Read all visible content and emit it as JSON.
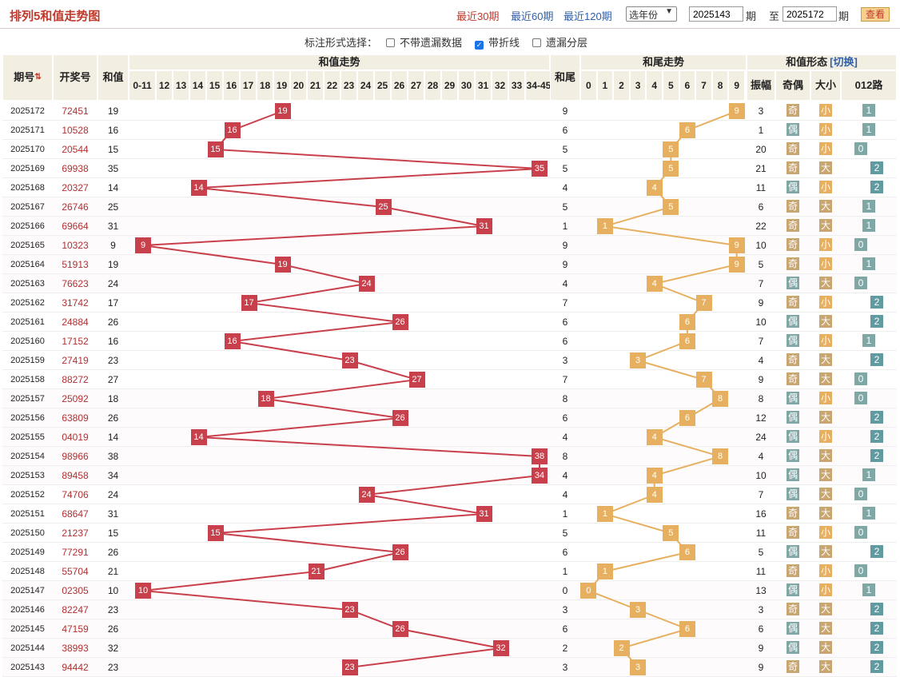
{
  "title": "排列5和值走势图",
  "nav": {
    "recent30": "最近30期",
    "recent60": "最近60期",
    "recent120": "最近120期"
  },
  "year_select": "选年份",
  "range": {
    "from": "2025143",
    "to": "2025172",
    "qi": "期",
    "zhi": "至",
    "query": "查看"
  },
  "options": {
    "label": "标注形式选择：",
    "o1": "不带遗漏数据",
    "o2": "带折线",
    "o3": "遗漏分层",
    "o1_checked": false,
    "o2_checked": true,
    "o3_checked": false
  },
  "headers": {
    "period": "期号",
    "period_sort": "▲▼",
    "draw": "开奖号",
    "sum": "和值",
    "trend": "和值走势",
    "tail": "和尾",
    "tail_trend": "和尾走势",
    "form": "和值形态",
    "switch": "[切换]",
    "amp": "振幅",
    "oddeven": "奇偶",
    "bigsmall": "大小",
    "road": "012路",
    "cols": [
      "0-11",
      "12",
      "13",
      "14",
      "15",
      "16",
      "17",
      "18",
      "19",
      "20",
      "21",
      "22",
      "23",
      "24",
      "25",
      "26",
      "27",
      "28",
      "29",
      "30",
      "31",
      "32",
      "33",
      "34-45"
    ],
    "tailcols": [
      "0",
      "1",
      "2",
      "3",
      "4",
      "5",
      "6",
      "7",
      "8",
      "9"
    ],
    "odd": "奇",
    "even": "偶",
    "big": "大",
    "small": "小"
  },
  "colors": {
    "red": "#c8404c",
    "orange": "#e6b060",
    "header": "#f3eee2"
  },
  "rows": [
    {
      "p": "2025172",
      "d": "72451",
      "s": 19,
      "t": 9,
      "amp": 3,
      "oe": "奇",
      "bs": "小",
      "rd": 1
    },
    {
      "p": "2025171",
      "d": "10528",
      "s": 16,
      "t": 6,
      "amp": 1,
      "oe": "偶",
      "bs": "小",
      "rd": 1
    },
    {
      "p": "2025170",
      "d": "20544",
      "s": 15,
      "t": 5,
      "amp": 20,
      "oe": "奇",
      "bs": "小",
      "rd": 0
    },
    {
      "p": "2025169",
      "d": "69938",
      "s": 35,
      "t": 5,
      "amp": 21,
      "oe": "奇",
      "bs": "大",
      "rd": 2
    },
    {
      "p": "2025168",
      "d": "20327",
      "s": 14,
      "t": 4,
      "amp": 11,
      "oe": "偶",
      "bs": "小",
      "rd": 2
    },
    {
      "p": "2025167",
      "d": "26746",
      "s": 25,
      "t": 5,
      "amp": 6,
      "oe": "奇",
      "bs": "大",
      "rd": 1
    },
    {
      "p": "2025166",
      "d": "69664",
      "s": 31,
      "t": 1,
      "amp": 22,
      "oe": "奇",
      "bs": "大",
      "rd": 1
    },
    {
      "p": "2025165",
      "d": "10323",
      "s": 9,
      "t": 9,
      "amp": 10,
      "oe": "奇",
      "bs": "小",
      "rd": 0
    },
    {
      "p": "2025164",
      "d": "51913",
      "s": 19,
      "t": 9,
      "amp": 5,
      "oe": "奇",
      "bs": "小",
      "rd": 1
    },
    {
      "p": "2025163",
      "d": "76623",
      "s": 24,
      "t": 4,
      "amp": 7,
      "oe": "偶",
      "bs": "大",
      "rd": 0
    },
    {
      "p": "2025162",
      "d": "31742",
      "s": 17,
      "t": 7,
      "amp": 9,
      "oe": "奇",
      "bs": "小",
      "rd": 2
    },
    {
      "p": "2025161",
      "d": "24884",
      "s": 26,
      "t": 6,
      "amp": 10,
      "oe": "偶",
      "bs": "大",
      "rd": 2
    },
    {
      "p": "2025160",
      "d": "17152",
      "s": 16,
      "t": 6,
      "amp": 7,
      "oe": "偶",
      "bs": "小",
      "rd": 1
    },
    {
      "p": "2025159",
      "d": "27419",
      "s": 23,
      "t": 3,
      "amp": 4,
      "oe": "奇",
      "bs": "大",
      "rd": 2
    },
    {
      "p": "2025158",
      "d": "88272",
      "s": 27,
      "t": 7,
      "amp": 9,
      "oe": "奇",
      "bs": "大",
      "rd": 0
    },
    {
      "p": "2025157",
      "d": "25092",
      "s": 18,
      "t": 8,
      "amp": 8,
      "oe": "偶",
      "bs": "小",
      "rd": 0
    },
    {
      "p": "2025156",
      "d": "63809",
      "s": 26,
      "t": 6,
      "amp": 12,
      "oe": "偶",
      "bs": "大",
      "rd": 2
    },
    {
      "p": "2025155",
      "d": "04019",
      "s": 14,
      "t": 4,
      "amp": 24,
      "oe": "偶",
      "bs": "小",
      "rd": 2
    },
    {
      "p": "2025154",
      "d": "98966",
      "s": 38,
      "t": 8,
      "amp": 4,
      "oe": "偶",
      "bs": "大",
      "rd": 2
    },
    {
      "p": "2025153",
      "d": "89458",
      "s": 34,
      "t": 4,
      "amp": 10,
      "oe": "偶",
      "bs": "大",
      "rd": 1
    },
    {
      "p": "2025152",
      "d": "74706",
      "s": 24,
      "t": 4,
      "amp": 7,
      "oe": "偶",
      "bs": "大",
      "rd": 0
    },
    {
      "p": "2025151",
      "d": "68647",
      "s": 31,
      "t": 1,
      "amp": 16,
      "oe": "奇",
      "bs": "大",
      "rd": 1
    },
    {
      "p": "2025150",
      "d": "21237",
      "s": 15,
      "t": 5,
      "amp": 11,
      "oe": "奇",
      "bs": "小",
      "rd": 0
    },
    {
      "p": "2025149",
      "d": "77291",
      "s": 26,
      "t": 6,
      "amp": 5,
      "oe": "偶",
      "bs": "大",
      "rd": 2
    },
    {
      "p": "2025148",
      "d": "55704",
      "s": 21,
      "t": 1,
      "amp": 11,
      "oe": "奇",
      "bs": "小",
      "rd": 0
    },
    {
      "p": "2025147",
      "d": "02305",
      "s": 10,
      "t": 0,
      "amp": 13,
      "oe": "偶",
      "bs": "小",
      "rd": 1
    },
    {
      "p": "2025146",
      "d": "82247",
      "s": 23,
      "t": 3,
      "amp": 3,
      "oe": "奇",
      "bs": "大",
      "rd": 2
    },
    {
      "p": "2025145",
      "d": "47159",
      "s": 26,
      "t": 6,
      "amp": 6,
      "oe": "偶",
      "bs": "大",
      "rd": 2
    },
    {
      "p": "2025144",
      "d": "38993",
      "s": 32,
      "t": 2,
      "amp": 9,
      "oe": "偶",
      "bs": "大",
      "rd": 2
    },
    {
      "p": "2025143",
      "d": "94442",
      "s": 23,
      "t": 3,
      "amp": 9,
      "oe": "奇",
      "bs": "大",
      "rd": 2
    }
  ]
}
